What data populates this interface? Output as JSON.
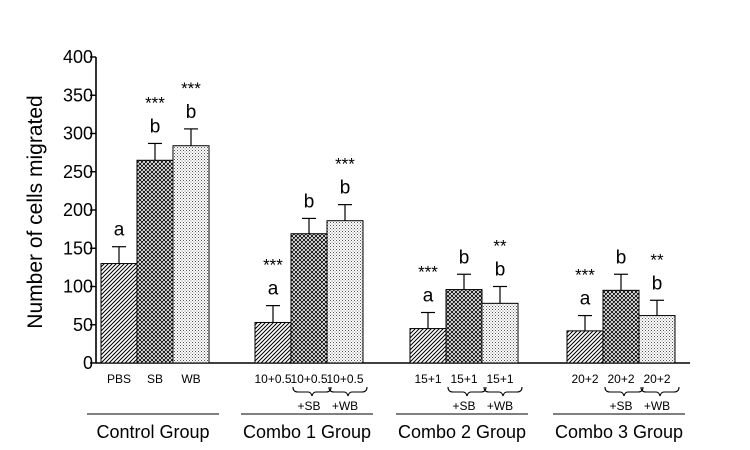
{
  "chart_data": {
    "type": "bar",
    "ylabel": "Number of cells migrated",
    "ylim": [
      0,
      400
    ],
    "yticks": [
      "0",
      "50",
      "100",
      "150",
      "200",
      "250",
      "300",
      "350",
      "400"
    ],
    "grid": false,
    "groups": [
      {
        "name": "Control Group",
        "bars": [
          {
            "label": "PBS",
            "sublabel": "",
            "value": 130,
            "error": 22,
            "letter": "a",
            "significance": ""
          },
          {
            "label": "SB",
            "sublabel": "",
            "value": 265,
            "error": 22,
            "letter": "b",
            "significance": "***"
          },
          {
            "label": "WB",
            "sublabel": "",
            "value": 284,
            "error": 22,
            "letter": "b",
            "significance": "***"
          }
        ]
      },
      {
        "name": "Combo 1 Group",
        "bars": [
          {
            "label": "10+0.5",
            "sublabel": "",
            "value": 53,
            "error": 22,
            "letter": "a",
            "significance": "***"
          },
          {
            "label": "10+0.5",
            "sublabel": "+SB",
            "value": 169,
            "error": 20,
            "letter": "b",
            "significance": ""
          },
          {
            "label": "10+0.5",
            "sublabel": "+WB",
            "value": 186,
            "error": 21,
            "letter": "b",
            "significance": "***"
          }
        ]
      },
      {
        "name": "Combo 2 Group",
        "bars": [
          {
            "label": "15+1",
            "sublabel": "",
            "value": 45,
            "error": 21,
            "letter": "a",
            "significance": "***"
          },
          {
            "label": "15+1",
            "sublabel": "+SB",
            "value": 96,
            "error": 20,
            "letter": "b",
            "significance": ""
          },
          {
            "label": "15+1",
            "sublabel": "+WB",
            "value": 78,
            "error": 22,
            "letter": "b",
            "significance": "**"
          }
        ]
      },
      {
        "name": "Combo 3 Group",
        "bars": [
          {
            "label": "20+2",
            "sublabel": "",
            "value": 42,
            "error": 20,
            "letter": "a",
            "significance": "***"
          },
          {
            "label": "20+2",
            "sublabel": "+SB",
            "value": 95,
            "error": 21,
            "letter": "b",
            "significance": ""
          },
          {
            "label": "20+2",
            "sublabel": "+WB",
            "value": 62,
            "error": 20,
            "letter": "b",
            "significance": "**"
          }
        ]
      }
    ],
    "colors": {
      "bar_fill": "#ffffff",
      "pattern_strokes": "#000000",
      "axis": "#000000"
    }
  }
}
